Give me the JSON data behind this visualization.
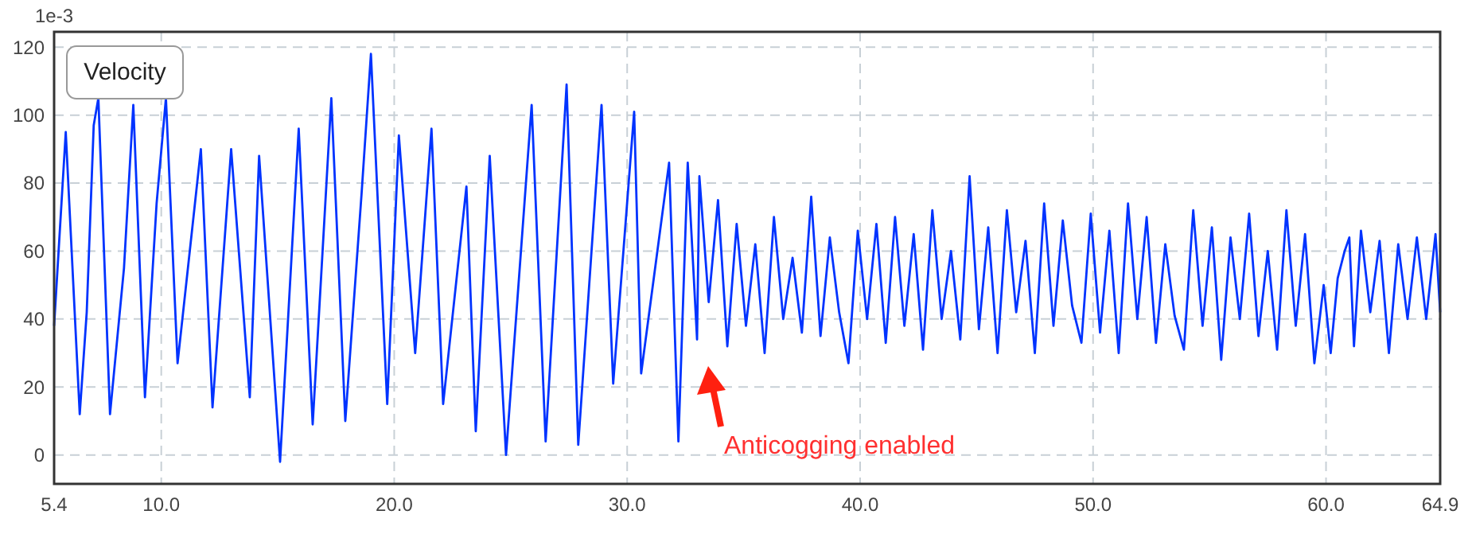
{
  "chart_data": {
    "type": "line",
    "title": "Velocity",
    "ylabel": "1e-3",
    "xlim": [
      5.4,
      64.9
    ],
    "ylim": [
      -8.5,
      124.5
    ],
    "xticks": [
      5.4,
      {
        "value": 10,
        "label": "10.0"
      },
      {
        "value": 20,
        "label": "20.0"
      },
      {
        "value": 30,
        "label": "30.0"
      },
      {
        "value": 40,
        "label": "40.0"
      },
      {
        "value": 50,
        "label": "50.0"
      },
      {
        "value": 60,
        "label": "60.0"
      },
      64.9
    ],
    "yticks": [
      0,
      20,
      40,
      60,
      80,
      100,
      120
    ],
    "grid": true,
    "line_style": "solid",
    "marker": "none",
    "annotations": [
      "Anticogging enabled"
    ],
    "series": [
      {
        "color": "#0033ff",
        "x": [
          5.4,
          5.9,
          6.5,
          6.8,
          7.1,
          7.3,
          7.8,
          8.4,
          8.8,
          9.3,
          9.8,
          10.2,
          10.7,
          11.7,
          12.2,
          13.0,
          13.8,
          14.2,
          15.1,
          15.9,
          16.5,
          17.3,
          17.9,
          18.6,
          19.0,
          19.7,
          20.2,
          20.9,
          21.6,
          22.1,
          23.1,
          23.5,
          24.1,
          24.8,
          25.9,
          26.5,
          27.4,
          27.9,
          28.9,
          29.4,
          30.3,
          30.6,
          31.8,
          32.2,
          32.6,
          33.0,
          33.1,
          33.5,
          33.9,
          34.3,
          34.7,
          35.1,
          35.5,
          35.9,
          36.3,
          36.7,
          37.1,
          37.5,
          37.9,
          38.3,
          38.7,
          39.1,
          39.5,
          39.9,
          40.3,
          40.7,
          41.1,
          41.5,
          41.9,
          42.3,
          42.7,
          43.1,
          43.5,
          43.9,
          44.3,
          44.7,
          45.1,
          45.5,
          45.9,
          46.3,
          46.7,
          47.1,
          47.5,
          47.9,
          48.3,
          48.7,
          49.1,
          49.5,
          49.9,
          50.3,
          50.7,
          51.1,
          51.5,
          51.9,
          52.3,
          52.7,
          53.1,
          53.5,
          53.9,
          54.3,
          54.7,
          55.1,
          55.5,
          55.9,
          56.3,
          56.7,
          57.1,
          57.5,
          57.9,
          58.3,
          58.7,
          59.1,
          59.5,
          59.9,
          60.2,
          60.5,
          60.8,
          61.0,
          61.2,
          61.5,
          61.9,
          62.3,
          62.7,
          63.1,
          63.5,
          63.9,
          64.3,
          64.7,
          64.9
        ],
        "values": [
          38,
          95,
          12,
          42,
          97,
          105,
          12,
          55,
          103,
          17,
          74,
          105,
          27,
          90,
          14,
          90,
          17,
          88,
          -2,
          96,
          9,
          105,
          10,
          77,
          118,
          15,
          94,
          30,
          96,
          15,
          79,
          7,
          88,
          0,
          103,
          4,
          109,
          3,
          103,
          21,
          101,
          24,
          86,
          4,
          86,
          34,
          82,
          45,
          75,
          32,
          68,
          38,
          62,
          30,
          70,
          40,
          58,
          36,
          76,
          35,
          64,
          42,
          27,
          66,
          40,
          68,
          33,
          70,
          38,
          65,
          31,
          72,
          40,
          60,
          34,
          82,
          37,
          67,
          30,
          72,
          42,
          63,
          30,
          74,
          38,
          69,
          44,
          33,
          71,
          36,
          66,
          30,
          74,
          40,
          70,
          33,
          62,
          41,
          31,
          72,
          38,
          67,
          28,
          64,
          40,
          71,
          35,
          60,
          31,
          72,
          38,
          65,
          27,
          50,
          30,
          52,
          60,
          64,
          32,
          66,
          42,
          63,
          30,
          62,
          40,
          64,
          40,
          65,
          42
        ]
      }
    ]
  }
}
